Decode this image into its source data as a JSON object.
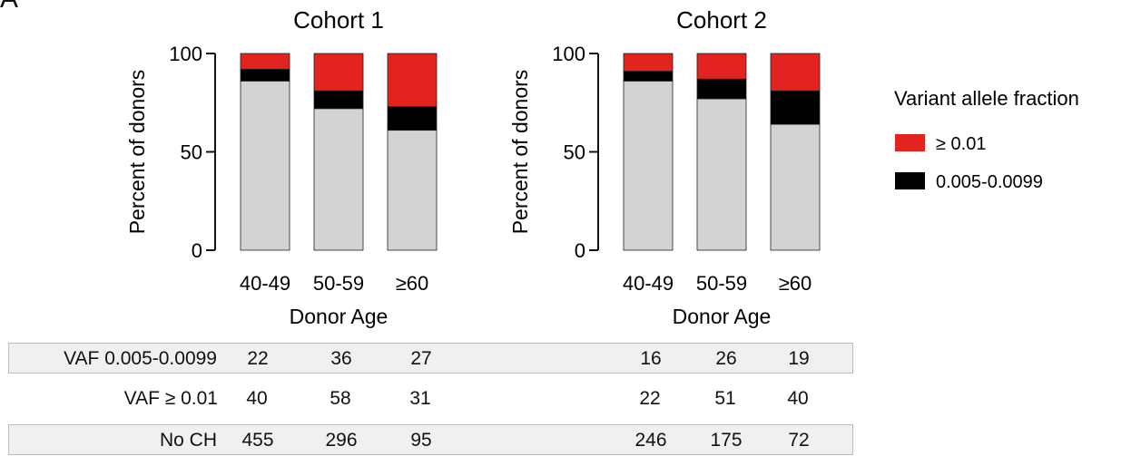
{
  "panel_letter": "A",
  "legend": {
    "title": "Variant allele fraction",
    "items": [
      {
        "label": "≥ 0.01",
        "color": "#e3231f"
      },
      {
        "label": "0.005-0.0099",
        "color": "#000000"
      }
    ]
  },
  "colors": {
    "no_ch": "#d3d3d3",
    "vaf_small": "#000000",
    "vaf_large": "#e3231f"
  },
  "chart_data": [
    {
      "type": "bar",
      "stacked": true,
      "title": "Cohort 1",
      "xlabel": "Donor Age",
      "ylabel": "Percent of donors",
      "ylim": [
        0,
        100
      ],
      "yticks": [
        0,
        50,
        100
      ],
      "categories": [
        "40-49",
        "50-59",
        "≥60"
      ],
      "series": [
        {
          "key": "no_ch",
          "values": [
            86,
            72,
            61
          ]
        },
        {
          "key": "vaf_small",
          "values": [
            6,
            9,
            12
          ]
        },
        {
          "key": "vaf_large",
          "values": [
            8,
            19,
            27
          ]
        }
      ]
    },
    {
      "type": "bar",
      "stacked": true,
      "title": "Cohort 2",
      "xlabel": "Donor Age",
      "ylabel": "Percent of donors",
      "ylim": [
        0,
        100
      ],
      "yticks": [
        0,
        50,
        100
      ],
      "categories": [
        "40-49",
        "50-59",
        "≥60"
      ],
      "series": [
        {
          "key": "no_ch",
          "values": [
            86,
            77,
            64
          ]
        },
        {
          "key": "vaf_small",
          "values": [
            5,
            10,
            17
          ]
        },
        {
          "key": "vaf_large",
          "values": [
            9,
            13,
            19
          ]
        }
      ]
    }
  ],
  "table": {
    "rows": [
      {
        "label": "VAF 0.005-0.0099",
        "cohort1": [
          "22",
          "36",
          "27"
        ],
        "cohort2": [
          "16",
          "26",
          "19"
        ],
        "shaded": true
      },
      {
        "label": "VAF ≥ 0.01",
        "cohort1": [
          "40",
          "58",
          "31"
        ],
        "cohort2": [
          "22",
          "51",
          "40"
        ],
        "shaded": false
      },
      {
        "label": "No CH",
        "cohort1": [
          "455",
          "296",
          "95"
        ],
        "cohort2": [
          "246",
          "175",
          "72"
        ],
        "shaded": true
      }
    ]
  }
}
